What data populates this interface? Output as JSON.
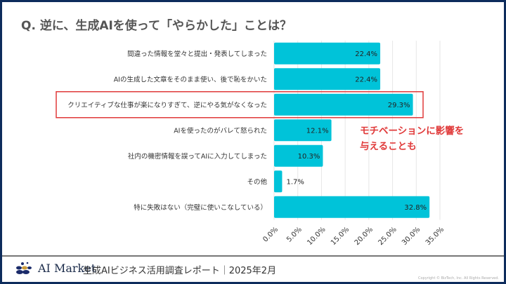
{
  "title": "Q. 逆に、生成AIを使って「やらかした」ことは？",
  "chart_data": {
    "type": "bar",
    "orientation": "horizontal",
    "categories": [
      "間違った情報を堂々と提出・発表してしまった",
      "AIの生成した文章をそのまま使い、後で恥をかいた",
      "クリエイティブな仕事が楽になりすぎて、逆にやる気がなくなった",
      "AIを使ったのがバレて怒られた",
      "社内の機密情報を誤ってAIに入力してしまった",
      "その他",
      "特に失敗はない（完璧に使いこなしている）"
    ],
    "values": [
      22.4,
      22.4,
      29.3,
      12.1,
      10.3,
      1.7,
      32.8
    ],
    "data_labels": [
      "22.4%",
      "22.4%",
      "29.3%",
      "12.1%",
      "10.3%",
      "1.7%",
      "32.8%"
    ],
    "xlim": [
      0,
      35
    ],
    "ticks": [
      "0.0%",
      "5.0%",
      "10.0%",
      "15.0%",
      "20.0%",
      "25.0%",
      "30.0%",
      "35.0%"
    ],
    "grid": true,
    "bar_color": "#00c3d9",
    "highlight_index": 2,
    "highlight_color": "#e03a3a"
  },
  "annotation": "モチベーションに影響を\n与えることも",
  "footer": {
    "logo": "AI Market",
    "report": "生成AIビジネス活用調査レポート｜2025年2月",
    "copyright": "Copyright © BizTech, Inc. All Rights Reserved."
  }
}
